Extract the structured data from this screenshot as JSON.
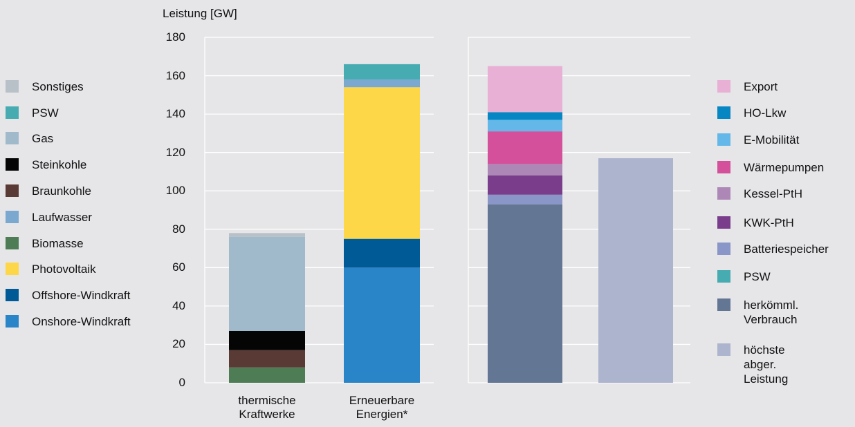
{
  "chart_data": {
    "type": "bar",
    "stacked": true,
    "ylabel": "Leistung [GW]",
    "ylim": [
      0,
      180
    ],
    "yticks": [
      0,
      20,
      40,
      60,
      80,
      100,
      120,
      140,
      160,
      180
    ],
    "grid": true,
    "panels": [
      {
        "categories": [
          "thermische\nKraftwerke",
          "Erneuerbare\nEnergien*"
        ],
        "series": [
          {
            "name": "Onshore-Windkraft",
            "color": "#2a84c8",
            "values": [
              0,
              60
            ]
          },
          {
            "name": "Offshore-Windkraft",
            "color": "#005a96",
            "values": [
              0,
              15
            ]
          },
          {
            "name": "Photovoltaik",
            "color": "#fed748",
            "values": [
              0,
              79
            ]
          },
          {
            "name": "Biomasse",
            "color": "#4d7c55",
            "values": [
              8,
              0
            ]
          },
          {
            "name": "Braunkohle",
            "color": "#5a3a34",
            "values": [
              9,
              0
            ]
          },
          {
            "name": "Steinkohle",
            "color": "#050505",
            "values": [
              10,
              0
            ]
          },
          {
            "name": "Laufwasser",
            "color": "#7aa8cf",
            "values": [
              0,
              4
            ]
          },
          {
            "name": "Gas",
            "color": "#a0bacb",
            "values": [
              49,
              0
            ]
          },
          {
            "name": "PSW",
            "color": "#47acb1",
            "values": [
              0,
              8
            ]
          },
          {
            "name": "Sonstiges",
            "color": "#b8c1c8",
            "values": [
              2,
              0
            ]
          }
        ]
      },
      {
        "categories": [
          "",
          ""
        ],
        "series": [
          {
            "name": "herkömml. Verbrauch",
            "color": "#637694",
            "values": [
              93,
              0
            ]
          },
          {
            "name": "PSW",
            "color": "#47acb1",
            "values": [
              0,
              0
            ]
          },
          {
            "name": "Batteriespeicher",
            "color": "#8a95c8",
            "values": [
              5,
              0
            ]
          },
          {
            "name": "KWK-PtH",
            "color": "#793d8c",
            "values": [
              10,
              0
            ]
          },
          {
            "name": "Kessel-PtH",
            "color": "#ad88b6",
            "values": [
              6,
              0
            ]
          },
          {
            "name": "Wärmepumpen",
            "color": "#d5509a",
            "values": [
              17,
              0
            ]
          },
          {
            "name": "E-Mobilität",
            "color": "#63b8e9",
            "values": [
              6,
              0
            ]
          },
          {
            "name": "HO-Lkw",
            "color": "#0686c2",
            "values": [
              4,
              0
            ]
          },
          {
            "name": "Export",
            "color": "#e9b0d5",
            "values": [
              24,
              0
            ]
          },
          {
            "name": "höchste abger. Leistung",
            "color": "#adb4cd",
            "values": [
              0,
              117
            ]
          }
        ]
      }
    ]
  },
  "legend_left": [
    {
      "label": "Sonstiges",
      "color": "#b8c1c8"
    },
    {
      "label": "PSW",
      "color": "#47acb1"
    },
    {
      "label": "Gas",
      "color": "#a0bacb"
    },
    {
      "label": "Steinkohle",
      "color": "#050505"
    },
    {
      "label": "Braunkohle",
      "color": "#5a3a34"
    },
    {
      "label": "Laufwasser",
      "color": "#7aa8cf"
    },
    {
      "label": "Biomasse",
      "color": "#4d7c55"
    },
    {
      "label": "Photovoltaik",
      "color": "#fed748"
    },
    {
      "label": "Offshore-Windkraft",
      "color": "#005a96"
    },
    {
      "label": "Onshore-Windkraft",
      "color": "#2a84c8"
    }
  ],
  "legend_right": [
    {
      "label": "Export",
      "color": "#e9b0d5"
    },
    {
      "label": "HO-Lkw",
      "color": "#0686c2"
    },
    {
      "label": "E-Mobilität",
      "color": "#63b8e9"
    },
    {
      "label": "Wärmepumpen",
      "color": "#d5509a"
    },
    {
      "label": "Kessel-PtH",
      "color": "#ad88b6"
    },
    {
      "label": "KWK-PtH",
      "color": "#793d8c"
    },
    {
      "label": "Batteriespeicher",
      "color": "#8a95c8"
    },
    {
      "label": "PSW",
      "color": "#47acb1"
    },
    {
      "label": "herkömml.\nVerbrauch",
      "color": "#637694"
    },
    {
      "label": "höchste abger.\nLeistung",
      "color": "#adb4cd"
    }
  ]
}
